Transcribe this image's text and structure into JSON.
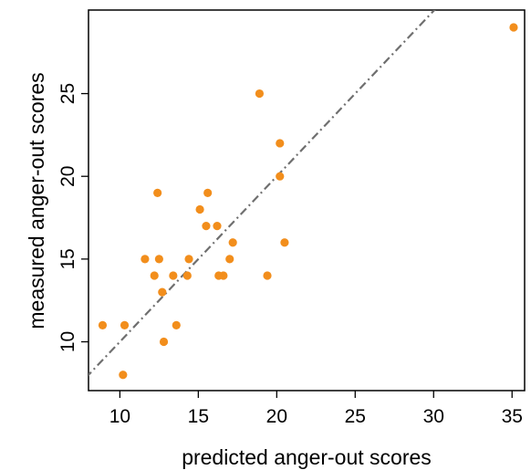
{
  "chart_data": {
    "type": "scatter",
    "title": "",
    "xlabel": "predicted anger-out scores",
    "ylabel": "measured anger-out scores",
    "xlim": [
      8,
      35.8
    ],
    "ylim": [
      7.05,
      30.05
    ],
    "xticks": [
      10,
      15,
      20,
      25,
      30,
      35
    ],
    "yticks": [
      10,
      15,
      20,
      25
    ],
    "grid": false,
    "point_color": "#F28E1C",
    "reference_line": {
      "type": "identity",
      "style": "dashdot",
      "color": "#6f6f6f"
    },
    "points": [
      {
        "x": 8.9,
        "y": 11
      },
      {
        "x": 10.3,
        "y": 11
      },
      {
        "x": 10.2,
        "y": 8
      },
      {
        "x": 11.6,
        "y": 15
      },
      {
        "x": 12.2,
        "y": 14
      },
      {
        "x": 12.4,
        "y": 19
      },
      {
        "x": 12.5,
        "y": 15
      },
      {
        "x": 12.7,
        "y": 13
      },
      {
        "x": 12.8,
        "y": 10
      },
      {
        "x": 13.4,
        "y": 14
      },
      {
        "x": 13.6,
        "y": 11
      },
      {
        "x": 14.3,
        "y": 14
      },
      {
        "x": 14.4,
        "y": 15
      },
      {
        "x": 15.1,
        "y": 18
      },
      {
        "x": 15.5,
        "y": 17
      },
      {
        "x": 15.6,
        "y": 19
      },
      {
        "x": 16.2,
        "y": 17
      },
      {
        "x": 16.3,
        "y": 14
      },
      {
        "x": 16.6,
        "y": 14
      },
      {
        "x": 17.0,
        "y": 15
      },
      {
        "x": 17.2,
        "y": 16
      },
      {
        "x": 18.9,
        "y": 25
      },
      {
        "x": 19.4,
        "y": 14
      },
      {
        "x": 20.2,
        "y": 22
      },
      {
        "x": 20.2,
        "y": 20
      },
      {
        "x": 20.5,
        "y": 16
      },
      {
        "x": 35.1,
        "y": 29
      }
    ]
  }
}
